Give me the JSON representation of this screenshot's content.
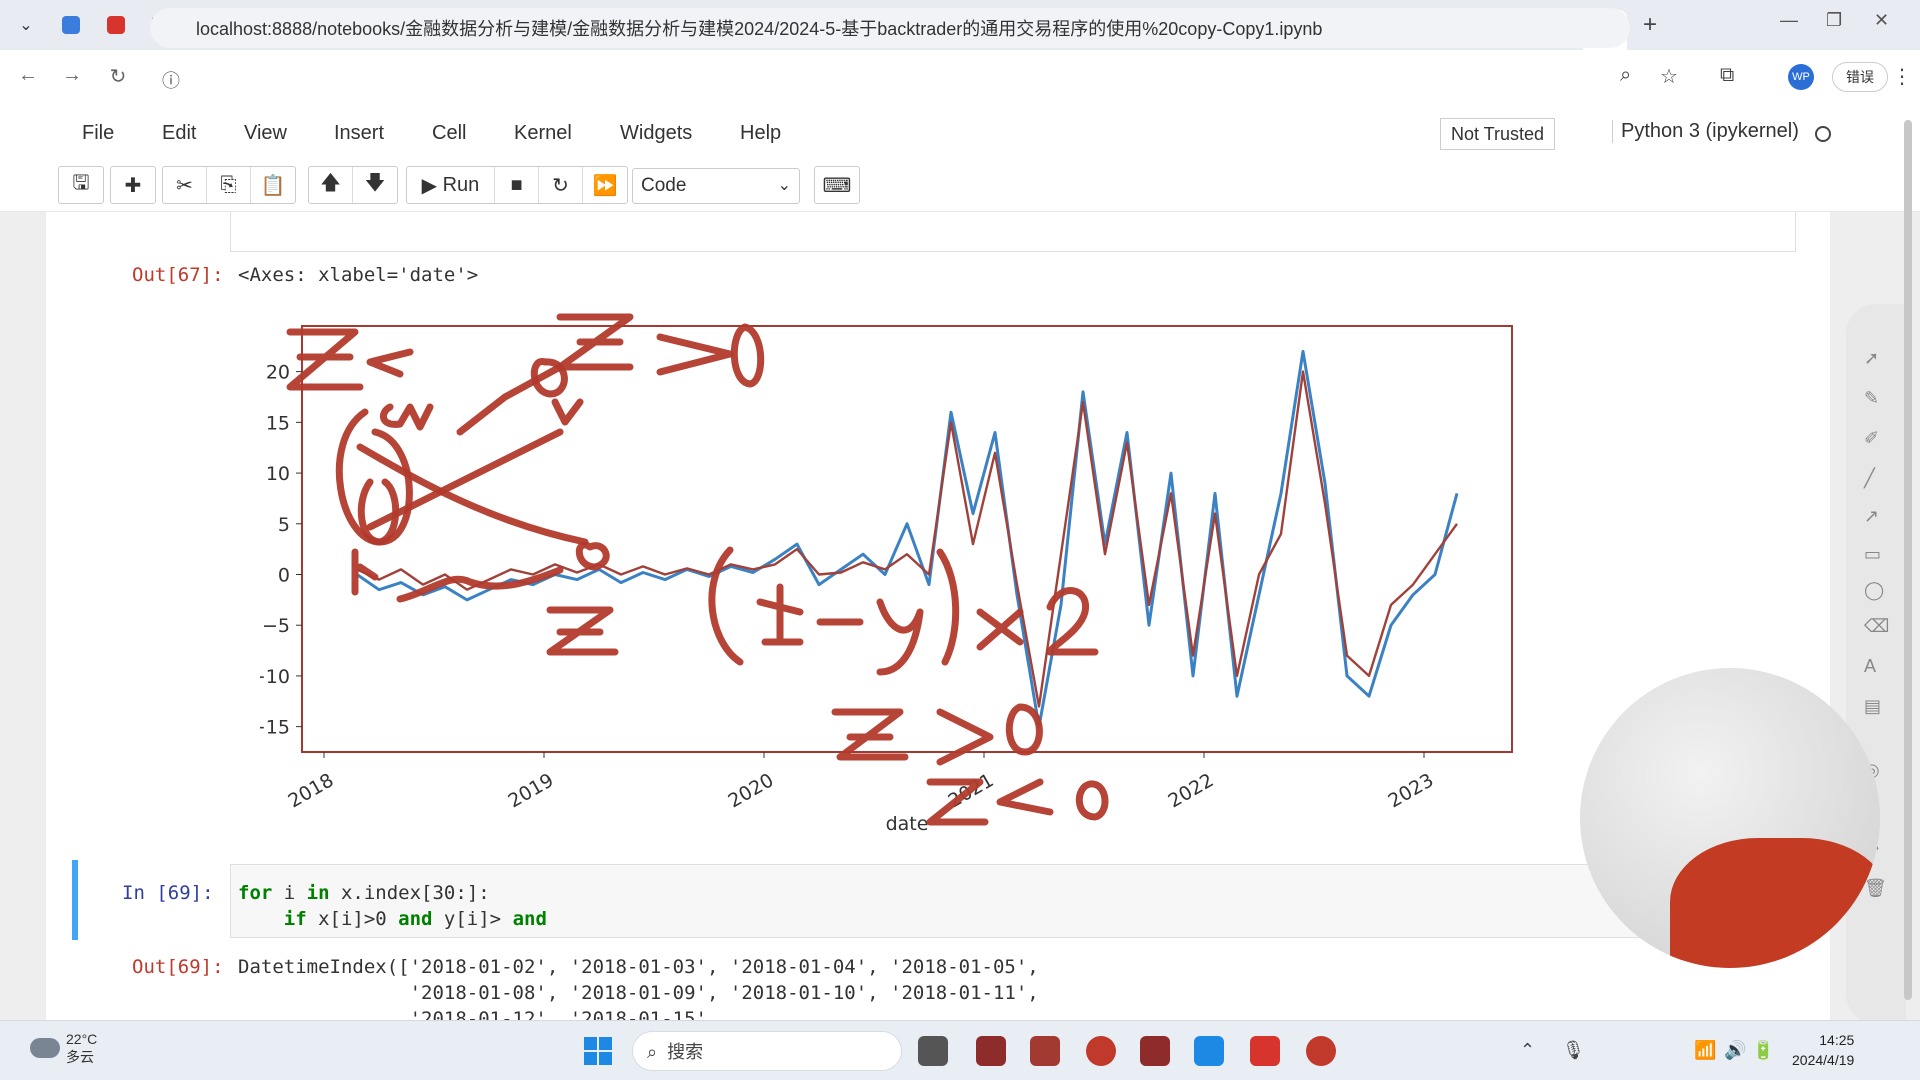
{
  "browser": {
    "active_tab_close": "×",
    "new_tab": "+",
    "tab_favicon_colors": [
      "#3b7ddd",
      "#d6342c",
      "#333333",
      "#c0392b",
      "#c0392b",
      "#1e88e5",
      "#8e2b2b",
      "#8e2b2b",
      "#c0392b",
      "#1e88e5",
      "#1e88e5",
      "#1e88e5",
      "#333333",
      "#1e88e5",
      "#e53935",
      "#d84315",
      "#333333",
      "#c0392b",
      "#1e88e5",
      "#1e88e5",
      "#8e2b2b",
      "#8e2b2b",
      "#8e2b2b",
      "#b8412e",
      "#d84315",
      "#4a7bd6",
      "#333333",
      "#333333",
      "#333333",
      "#333333",
      "#c0392b",
      "#c0392b",
      "#c0392b",
      "#3b5bdb"
    ],
    "url": "localhost:8888/notebooks/金融数据分析与建模/金融数据分析与建模2024/2024-5-基于backtrader的通用交易程序的使用%20copy-Copy1.ipynb",
    "profile_label": "WP",
    "error_button": "错误"
  },
  "jupyter": {
    "menu": [
      "File",
      "Edit",
      "View",
      "Insert",
      "Cell",
      "Kernel",
      "Widgets",
      "Help"
    ],
    "trust_status": "Not Trusted",
    "kernel": "Python 3 (ipykernel)",
    "run_label": "Run",
    "cell_type": "Code"
  },
  "cells": {
    "out67_prompt": "Out[67]:",
    "out67_text": "<Axes: xlabel='date'>",
    "in69_prompt": "In  [69]:",
    "in69_line1_for": "for",
    "in69_line1_i": " i ",
    "in69_line1_in": "in",
    "in69_line1_rest": " x.index[30:]:",
    "in69_line2_if": "    if",
    "in69_line2_mid": " x[i]>0 ",
    "in69_line2_and1": "and",
    "in69_line2_y": " y[i]> ",
    "in69_line2_and2": "and",
    "out69_prompt": "Out[69]:",
    "out69_line1": "DatetimeIndex(['2018-01-02', '2018-01-03', '2018-01-04', '2018-01-05',",
    "out69_line2": "               '2018-01-08', '2018-01-09', '2018-01-10', '2018-01-11',",
    "out69_line3": "               '2018-01-12', '2018-01-15',"
  },
  "chart_data": {
    "type": "line",
    "xlabel": "date",
    "ylabel": "",
    "x_tick_labels": [
      "2018",
      "2019",
      "2020",
      "2021",
      "2022",
      "2023"
    ],
    "y_tick_labels": [
      "20",
      "15",
      "10",
      "5",
      "0",
      "-5",
      "-10",
      "-15"
    ],
    "ylim": [
      -17.5,
      24.5
    ],
    "xlim": [
      2017.9,
      2023.4
    ],
    "grid": false,
    "legend": "none",
    "colors": {
      "series_a": "#3b82c4",
      "series_b": "#a0413a",
      "annotation": "#b23a2c",
      "frame": "#a33a32"
    },
    "series": [
      {
        "x": [
          2018.15,
          2018.25,
          2018.35,
          2018.45,
          2018.55,
          2018.65,
          2018.75,
          2018.85,
          2018.95,
          2019.05,
          2019.15,
          2019.25,
          2019.35,
          2019.45,
          2019.55,
          2019.65,
          2019.75,
          2019.85,
          2019.95,
          2020.05,
          2020.15,
          2020.25,
          2020.35,
          2020.45,
          2020.55,
          2020.65,
          2020.75,
          2020.85,
          2020.95,
          2021.05,
          2021.15,
          2021.25,
          2021.35,
          2021.45,
          2021.55,
          2021.65,
          2021.75,
          2021.85,
          2021.95,
          2022.05,
          2022.15,
          2022.25,
          2022.35,
          2022.45,
          2022.55,
          2022.65,
          2022.75,
          2022.85,
          2022.95,
          2023.05,
          2023.15
        ],
        "values": [
          0,
          -1.5,
          -0.8,
          -2,
          -1.2,
          -2.5,
          -1.5,
          -0.5,
          -1,
          0,
          -0.5,
          0.5,
          -0.8,
          0.2,
          -0.5,
          0.5,
          -0.2,
          0.8,
          0.2,
          1.5,
          3,
          -1,
          0.5,
          2,
          0,
          5,
          -1,
          16,
          6,
          14,
          -2,
          -15,
          -3,
          18,
          3,
          14,
          -5,
          10,
          -10,
          8,
          -12,
          -2,
          8,
          22,
          9,
          -10,
          -12,
          -5,
          -2,
          0,
          8
        ]
      },
      {
        "x": [
          2018.15,
          2018.25,
          2018.35,
          2018.45,
          2018.55,
          2018.65,
          2018.75,
          2018.85,
          2018.95,
          2019.05,
          2019.15,
          2019.25,
          2019.35,
          2019.45,
          2019.55,
          2019.65,
          2019.75,
          2019.85,
          2019.95,
          2020.05,
          2020.15,
          2020.25,
          2020.35,
          2020.45,
          2020.55,
          2020.65,
          2020.75,
          2020.85,
          2020.95,
          2021.05,
          2021.15,
          2021.25,
          2021.35,
          2021.45,
          2021.55,
          2021.65,
          2021.75,
          2021.85,
          2021.95,
          2022.05,
          2022.15,
          2022.25,
          2022.35,
          2022.45,
          2022.55,
          2022.65,
          2022.75,
          2022.85,
          2022.95,
          2023.05,
          2023.15
        ],
        "values": [
          0.5,
          -0.5,
          0.5,
          -1,
          0,
          -1.5,
          -0.5,
          0.5,
          0,
          1,
          0.2,
          1,
          0,
          0.8,
          0,
          0.6,
          0,
          1,
          0.5,
          1,
          2.5,
          0,
          0.2,
          1.2,
          0.5,
          2,
          0,
          15,
          3,
          12,
          -1,
          -13,
          2,
          17,
          2,
          13,
          -3,
          8,
          -8,
          6,
          -10,
          0,
          4,
          20,
          7,
          -8,
          -10,
          -3,
          -1,
          2,
          5
        ]
      }
    ]
  }
}
